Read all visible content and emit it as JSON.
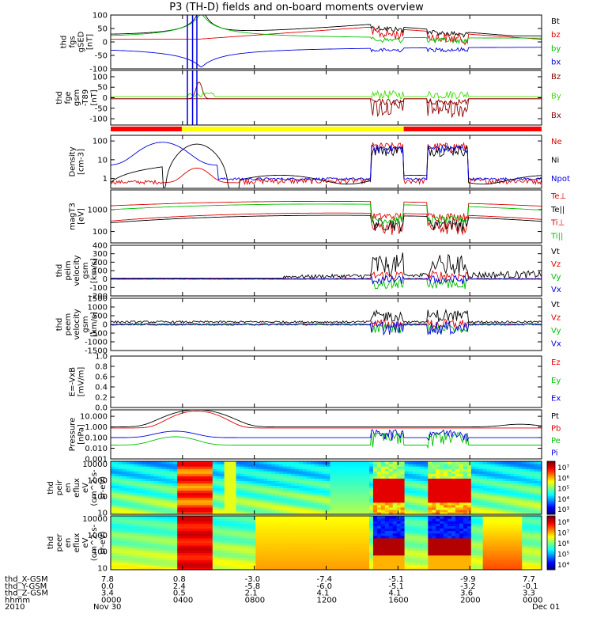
{
  "title": "P3 (TH-D) fields and on-board moments overview",
  "colors": {
    "black": "#000000",
    "red": "#e00000",
    "green": "#00c000",
    "blue": "#0000e0",
    "darkred": "#8b0000",
    "lime": "#40e000",
    "yellow": "#ffff00"
  },
  "status_bar": {
    "segments": [
      {
        "x0": 0,
        "x1": 0.165,
        "color": "#ff0000"
      },
      {
        "x0": 0.165,
        "x1": 0.68,
        "color": "#ffff00"
      },
      {
        "x0": 0.68,
        "x1": 1,
        "color": "#ff0000"
      }
    ]
  },
  "x_axis": {
    "rows": [
      {
        "label": "thd_X-GSM",
        "values": [
          "7.8",
          "0.8",
          "3.0",
          "7.4",
          "5.1",
          "9.9",
          "7.7"
        ],
        "signs": [
          "",
          "",
          "-",
          "-",
          "-",
          "-",
          ""
        ]
      },
      {
        "label": "thd_Y-GSM",
        "values": [
          "0.0",
          "2.4",
          "-5.8",
          "-6.0",
          "-5.1",
          "-3.2",
          "-0.1"
        ]
      },
      {
        "label": "thd_Z-GSM",
        "values": [
          "3.4",
          "0.5",
          "2.1",
          "4.1",
          "4.1",
          "3.6",
          "3.3"
        ]
      },
      {
        "label": "hhmm",
        "values": [
          "0000",
          "0400",
          "0800",
          "1200",
          "1600",
          "2000",
          "0000"
        ]
      },
      {
        "label": "2010",
        "values": [
          "Nov 30",
          "",
          "",
          "",
          "",
          "",
          "Dec 01"
        ]
      }
    ]
  },
  "chart_data": [
    {
      "type": "line",
      "panel": "fgs_gse",
      "ylabel": [
        "thd",
        "fgs",
        "gSED",
        "[nT]"
      ],
      "ylim": [
        -100,
        100
      ],
      "yticks": [
        "100",
        "50",
        "0",
        "-50",
        "-100"
      ],
      "series": [
        {
          "name": "Bt",
          "color": "#000000"
        },
        {
          "name": "bz",
          "color": "#e00000"
        },
        {
          "name": "by",
          "color": "#00c000"
        },
        {
          "name": "bx",
          "color": "#0000e0"
        }
      ]
    },
    {
      "type": "line",
      "panel": "fge_gsm",
      "ylabel": [
        "thd",
        "fge",
        "gsm",
        "-T89",
        "[nT]"
      ],
      "ylim": [
        -130,
        130
      ],
      "yticks": [
        "100",
        "50",
        "0",
        "-50",
        "-100"
      ],
      "series": [
        {
          "name": "Bz",
          "color": "#8b0000"
        },
        {
          "name": "By",
          "color": "#40e000"
        },
        {
          "name": "Bx",
          "color": "#8b0000"
        }
      ]
    },
    {
      "type": "line",
      "panel": "density",
      "ylabel": [
        "Density",
        "[cm-3]"
      ],
      "yscale": "log",
      "ylim": [
        0.3,
        200
      ],
      "yticks": [
        "100",
        "10",
        "1"
      ],
      "series": [
        {
          "name": "Ne",
          "color": "#e00000"
        },
        {
          "name": "Ni",
          "color": "#000000"
        },
        {
          "name": "Npot",
          "color": "#0000e0"
        }
      ]
    },
    {
      "type": "line",
      "panel": "temperature",
      "ylabel": [
        "magT3",
        "[eV]"
      ],
      "yscale": "log",
      "ylim": [
        30,
        8000
      ],
      "yticks": [
        "1000",
        "100"
      ],
      "series": [
        {
          "name": "Te⊥",
          "color": "#e00000"
        },
        {
          "name": "Te||",
          "color": "#000000"
        },
        {
          "name": "Ti⊥",
          "color": "#e00000"
        },
        {
          "name": "Ti||",
          "color": "#00c000"
        }
      ]
    },
    {
      "type": "line",
      "panel": "peim_velocity",
      "ylabel": [
        "thd",
        "peim",
        "velocity",
        "gsm",
        "[km/s]"
      ],
      "ylim": [
        -200,
        400
      ],
      "yticks": [
        "400",
        "300",
        "200",
        "100",
        "0",
        "-100",
        "-200"
      ],
      "series": [
        {
          "name": "Vt",
          "color": "#000000"
        },
        {
          "name": "Vz",
          "color": "#e00000"
        },
        {
          "name": "Vy",
          "color": "#00c000"
        },
        {
          "name": "Vx",
          "color": "#0000e0"
        }
      ]
    },
    {
      "type": "line",
      "panel": "peem_velocity",
      "ylabel": [
        "thd",
        "peem",
        "velocity",
        "gsm",
        "[km/s]"
      ],
      "ylim": [
        -1500,
        1500
      ],
      "yticks": [
        "1500",
        "1000",
        "500",
        "0",
        "-500",
        "-1000",
        "-1500"
      ],
      "series": [
        {
          "name": "Vt",
          "color": "#000000"
        },
        {
          "name": "Vz",
          "color": "#e00000"
        },
        {
          "name": "Vy",
          "color": "#00c000"
        },
        {
          "name": "Vx",
          "color": "#0000e0"
        }
      ]
    },
    {
      "type": "line",
      "panel": "efield",
      "ylabel": [
        "E=-VxB",
        "[mV/m]"
      ],
      "ylim": [
        0,
        1
      ],
      "yticks": [
        "1.0",
        "0.8",
        "0.6",
        "0.4",
        "0.2",
        "0.0"
      ],
      "series": [
        {
          "name": "Ez",
          "color": "#e00000"
        },
        {
          "name": "Ey",
          "color": "#00c000"
        },
        {
          "name": "Ex",
          "color": "#0000e0"
        }
      ]
    },
    {
      "type": "line",
      "panel": "pressure",
      "ylabel": [
        "Pressure",
        "[nPa]"
      ],
      "yscale": "log",
      "ylim": [
        0.001,
        40
      ],
      "yticks": [
        "10.000",
        "1.000",
        "0.100",
        "0.010",
        "0.001"
      ],
      "series": [
        {
          "name": "Pt",
          "color": "#000000"
        },
        {
          "name": "Pb",
          "color": "#e00000"
        },
        {
          "name": "Pe",
          "color": "#00c000"
        },
        {
          "name": "Pi",
          "color": "#0000e0"
        }
      ]
    },
    {
      "type": "heatmap",
      "panel": "peir_eflux",
      "ylabel": [
        "thd",
        "peir",
        "en",
        "eflux",
        "eV",
        "(cm^2-s-",
        "sr-eV)"
      ],
      "yscale": "log",
      "ylim": [
        8,
        15000
      ],
      "yticks": [
        "10000",
        "1000",
        "100",
        "10"
      ],
      "colorbar": {
        "ticks": [
          "10⁷",
          "10⁶",
          "10⁵",
          "10⁴",
          "10³"
        ]
      }
    },
    {
      "type": "heatmap",
      "panel": "peer_eflux",
      "ylabel": [
        "thd",
        "peer",
        "en",
        "eflux",
        "eV",
        "(cm^2-s-",
        "sr-eV)"
      ],
      "yscale": "log",
      "ylim": [
        8,
        15000
      ],
      "yticks": [
        "10000",
        "1000",
        "100",
        "10"
      ],
      "colorbar": {
        "ticks": [
          "10⁸",
          "10⁷",
          "10⁶",
          "10⁵",
          "10⁴"
        ]
      }
    }
  ]
}
